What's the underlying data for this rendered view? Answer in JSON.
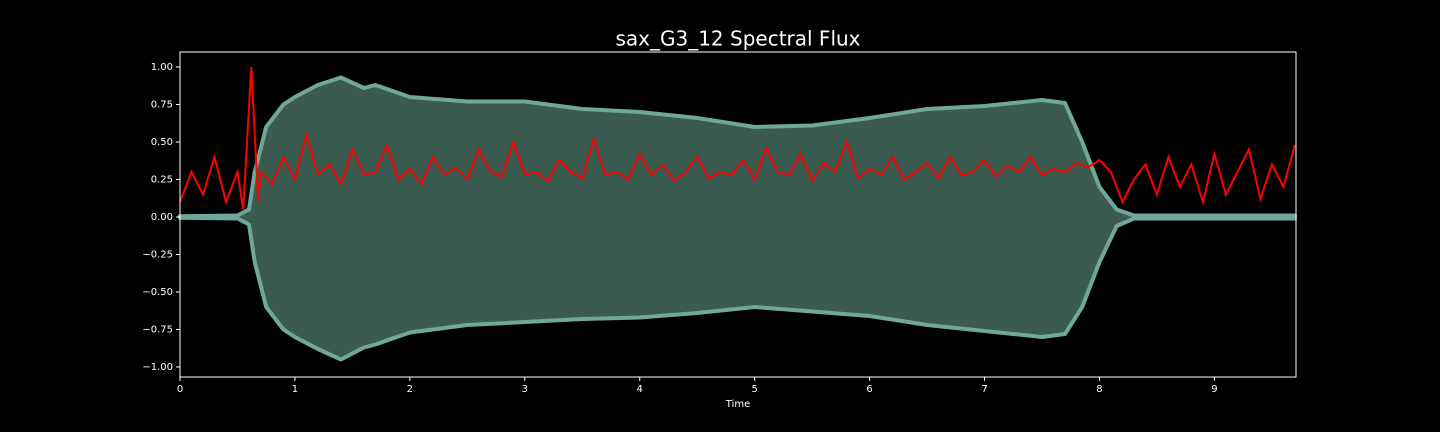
{
  "chart_data": {
    "type": "waveform-flux",
    "title": "sax_G3_12 Spectral Flux",
    "x_label": "Time",
    "xlim": [
      0,
      9.71
    ],
    "ylim": [
      -1.067,
      1.1
    ],
    "xticks": [
      0,
      1,
      2,
      3,
      4,
      5,
      6,
      7,
      8,
      9
    ],
    "yticks": [
      {
        "value": 1,
        "label": "1.00"
      },
      0.75,
      {
        "value": 0.5,
        "label": "0.50"
      },
      0.25,
      {
        "value": 0,
        "label": "0.00"
      },
      {
        "value": -0.25,
        "label": "−0.25"
      },
      {
        "value": -0.5,
        "label": "−0.50"
      },
      {
        "value": -0.75,
        "label": "−0.75"
      },
      {
        "value": -1,
        "label": "−1.00"
      }
    ],
    "waveform": {
      "color": "#3b5a50",
      "edge_color": "#6fa89b",
      "x": [
        0,
        0.5,
        0.6,
        0.65,
        0.75,
        0.9,
        1.0,
        1.2,
        1.4,
        1.6,
        1.7,
        2.0,
        2.5,
        3.0,
        3.5,
        4.0,
        4.5,
        5.0,
        5.5,
        6.0,
        6.5,
        7.0,
        7.5,
        7.7,
        7.85,
        8.0,
        8.15,
        8.3,
        9.7
      ],
      "upper": [
        0.005,
        0.01,
        0.05,
        0.3,
        0.6,
        0.75,
        0.8,
        0.88,
        0.93,
        0.86,
        0.88,
        0.8,
        0.77,
        0.77,
        0.72,
        0.7,
        0.66,
        0.6,
        0.61,
        0.66,
        0.72,
        0.74,
        0.78,
        0.76,
        0.5,
        0.2,
        0.05,
        0.01,
        0.01
      ],
      "lower": [
        -0.005,
        -0.01,
        -0.05,
        -0.3,
        -0.6,
        -0.75,
        -0.8,
        -0.88,
        -0.95,
        -0.87,
        -0.85,
        -0.77,
        -0.72,
        -0.7,
        -0.68,
        -0.67,
        -0.64,
        -0.6,
        -0.63,
        -0.66,
        -0.72,
        -0.76,
        -0.8,
        -0.78,
        -0.6,
        -0.3,
        -0.06,
        -0.01,
        -0.01
      ]
    },
    "flux": {
      "color": "#ff0000",
      "x": [
        0,
        0.1,
        0.2,
        0.3,
        0.4,
        0.5,
        0.55,
        0.62,
        0.68,
        0.7,
        0.8,
        0.9,
        1.0,
        1.1,
        1.2,
        1.3,
        1.4,
        1.5,
        1.6,
        1.7,
        1.8,
        1.9,
        2.0,
        2.1,
        2.2,
        2.3,
        2.4,
        2.5,
        2.6,
        2.7,
        2.8,
        2.9,
        3.0,
        3.1,
        3.2,
        3.3,
        3.4,
        3.5,
        3.6,
        3.7,
        3.8,
        3.9,
        4.0,
        4.1,
        4.2,
        4.3,
        4.4,
        4.5,
        4.6,
        4.7,
        4.8,
        4.9,
        5.0,
        5.1,
        5.2,
        5.3,
        5.4,
        5.5,
        5.6,
        5.7,
        5.8,
        5.9,
        6.0,
        6.1,
        6.2,
        6.3,
        6.4,
        6.5,
        6.6,
        6.7,
        6.8,
        6.9,
        7.0,
        7.1,
        7.2,
        7.3,
        7.4,
        7.5,
        7.6,
        7.7,
        7.8,
        7.9,
        8.0,
        8.1,
        8.2,
        8.3,
        8.4,
        8.5,
        8.6,
        8.7,
        8.8,
        8.9,
        9.0,
        9.1,
        9.2,
        9.3,
        9.4,
        9.5,
        9.6,
        9.7
      ],
      "values": [
        0.1,
        0.3,
        0.15,
        0.4,
        0.1,
        0.3,
        0.05,
        1.0,
        0.1,
        0.3,
        0.22,
        0.4,
        0.25,
        0.55,
        0.28,
        0.35,
        0.22,
        0.45,
        0.28,
        0.3,
        0.48,
        0.25,
        0.32,
        0.22,
        0.4,
        0.28,
        0.33,
        0.25,
        0.45,
        0.3,
        0.27,
        0.5,
        0.28,
        0.3,
        0.24,
        0.38,
        0.3,
        0.26,
        0.52,
        0.28,
        0.3,
        0.25,
        0.42,
        0.28,
        0.35,
        0.24,
        0.3,
        0.4,
        0.26,
        0.3,
        0.28,
        0.38,
        0.25,
        0.46,
        0.3,
        0.28,
        0.42,
        0.24,
        0.36,
        0.3,
        0.5,
        0.26,
        0.32,
        0.28,
        0.4,
        0.25,
        0.3,
        0.36,
        0.26,
        0.4,
        0.28,
        0.3,
        0.38,
        0.27,
        0.34,
        0.3,
        0.4,
        0.28,
        0.32,
        0.3,
        0.36,
        0.33,
        0.38,
        0.3,
        0.1,
        0.25,
        0.35,
        0.15,
        0.4,
        0.2,
        0.35,
        0.1,
        0.42,
        0.15,
        0.3,
        0.45,
        0.12,
        0.35,
        0.2,
        0.48
      ]
    }
  }
}
